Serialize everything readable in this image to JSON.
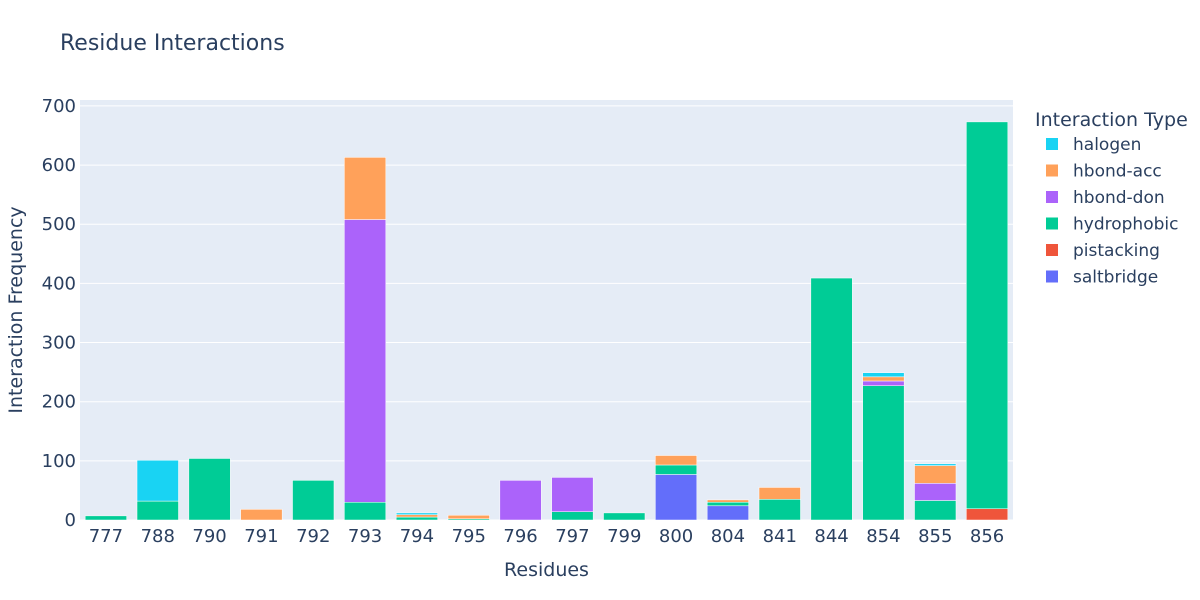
{
  "chart_data": {
    "type": "bar",
    "stacked": true,
    "title": "Residue Interactions",
    "xlabel": "Residues",
    "ylabel": "Interaction Frequency",
    "ylim": [
      0,
      710
    ],
    "yticks": [
      0,
      100,
      200,
      300,
      400,
      500,
      600,
      700
    ],
    "grid": true,
    "legend_title": "Interaction Type",
    "legend_position": "right",
    "categories": [
      "777",
      "788",
      "790",
      "791",
      "792",
      "793",
      "794",
      "795",
      "796",
      "797",
      "799",
      "800",
      "804",
      "841",
      "844",
      "854",
      "855",
      "856"
    ],
    "series": [
      {
        "name": "halogen",
        "color": "#19d3f3",
        "values": [
          0,
          69,
          0,
          0,
          0,
          0,
          3,
          0,
          0,
          0,
          0,
          0,
          0,
          0,
          0,
          7,
          3,
          0
        ]
      },
      {
        "name": "hbond-acc",
        "color": "#ffa15a",
        "values": [
          0,
          0,
          0,
          18,
          0,
          105,
          4,
          6,
          0,
          0,
          0,
          16,
          4,
          20,
          0,
          7,
          30,
          0
        ]
      },
      {
        "name": "hbond-don",
        "color": "#ab63fa",
        "values": [
          0,
          0,
          0,
          0,
          0,
          478,
          0,
          0,
          67,
          58,
          0,
          0,
          0,
          0,
          0,
          8,
          29,
          0
        ]
      },
      {
        "name": "hydrophobic",
        "color": "#00cc96",
        "values": [
          7,
          32,
          104,
          0,
          67,
          30,
          5,
          2,
          0,
          14,
          12,
          16,
          6,
          35,
          409,
          227,
          33,
          654
        ]
      },
      {
        "name": "pistacking",
        "color": "#ef553b",
        "values": [
          0,
          0,
          0,
          0,
          0,
          0,
          0,
          0,
          0,
          0,
          0,
          0,
          0,
          0,
          0,
          0,
          0,
          19
        ]
      },
      {
        "name": "saltbridge",
        "color": "#636efa",
        "values": [
          0,
          0,
          0,
          0,
          0,
          0,
          0,
          0,
          0,
          0,
          0,
          77,
          24,
          0,
          0,
          0,
          0,
          0
        ]
      }
    ],
    "stack_order": [
      "saltbridge",
      "pistacking",
      "hydrophobic",
      "hbond-don",
      "hbond-acc",
      "halogen"
    ],
    "colors": {
      "plot_bg": "#e5ecf6",
      "grid": "#ffffff",
      "text": "#2a3f5f"
    }
  }
}
